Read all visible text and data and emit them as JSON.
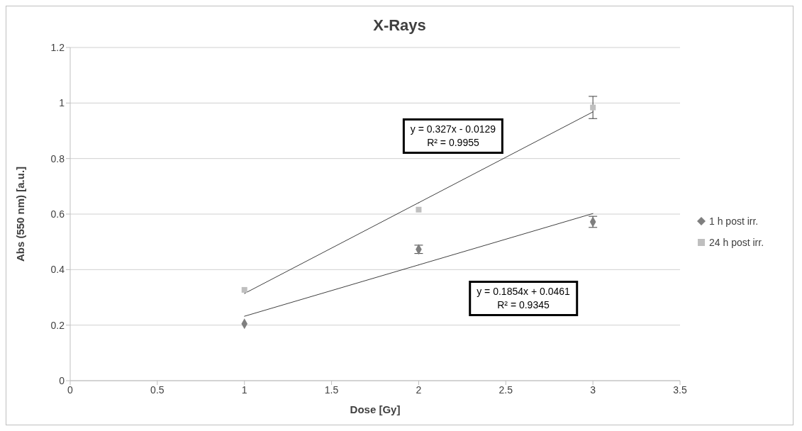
{
  "chart_data": {
    "type": "scatter",
    "title": "X-Rays",
    "xlabel": "Dose [Gy]",
    "ylabel": "Abs (550 nm) [a.u.]",
    "x": [
      1,
      2,
      3
    ],
    "series": [
      {
        "name": "1 h post irr.",
        "color": "#7f7f7f",
        "marker": "diamond",
        "values": [
          0.205,
          0.473,
          0.572
        ],
        "errors": [
          null,
          0.015,
          0.02
        ]
      },
      {
        "name": "24 h post irr.",
        "color": "#bfbfbf",
        "marker": "square",
        "values": [
          0.327,
          0.616,
          0.984
        ],
        "errors": [
          null,
          null,
          0.04
        ]
      },
      {
        "type": "line",
        "color": "#404040",
        "marker": "none",
        "values": [
          0.314,
          0.641,
          0.968
        ]
      },
      {
        "type": "line",
        "color": "#404040",
        "marker": "none",
        "values": [
          0.232,
          0.417,
          0.602
        ]
      }
    ],
    "annotations": [
      "y = 0.327x - 0.0129\nR² = 0.9955",
      "y = 0.1854x + 0.0461\nR² = 0.9345"
    ],
    "xlim": [
      0,
      3.5
    ],
    "xticks": [
      0,
      0.5,
      1,
      1.5,
      2,
      2.5,
      3,
      3.5
    ],
    "ylim": [
      0,
      1.2
    ],
    "yticks": [
      0,
      0.2,
      0.4,
      0.6,
      0.8,
      1,
      1.2
    ],
    "grid": "y",
    "legend": "right",
    "line_style": "solid"
  }
}
